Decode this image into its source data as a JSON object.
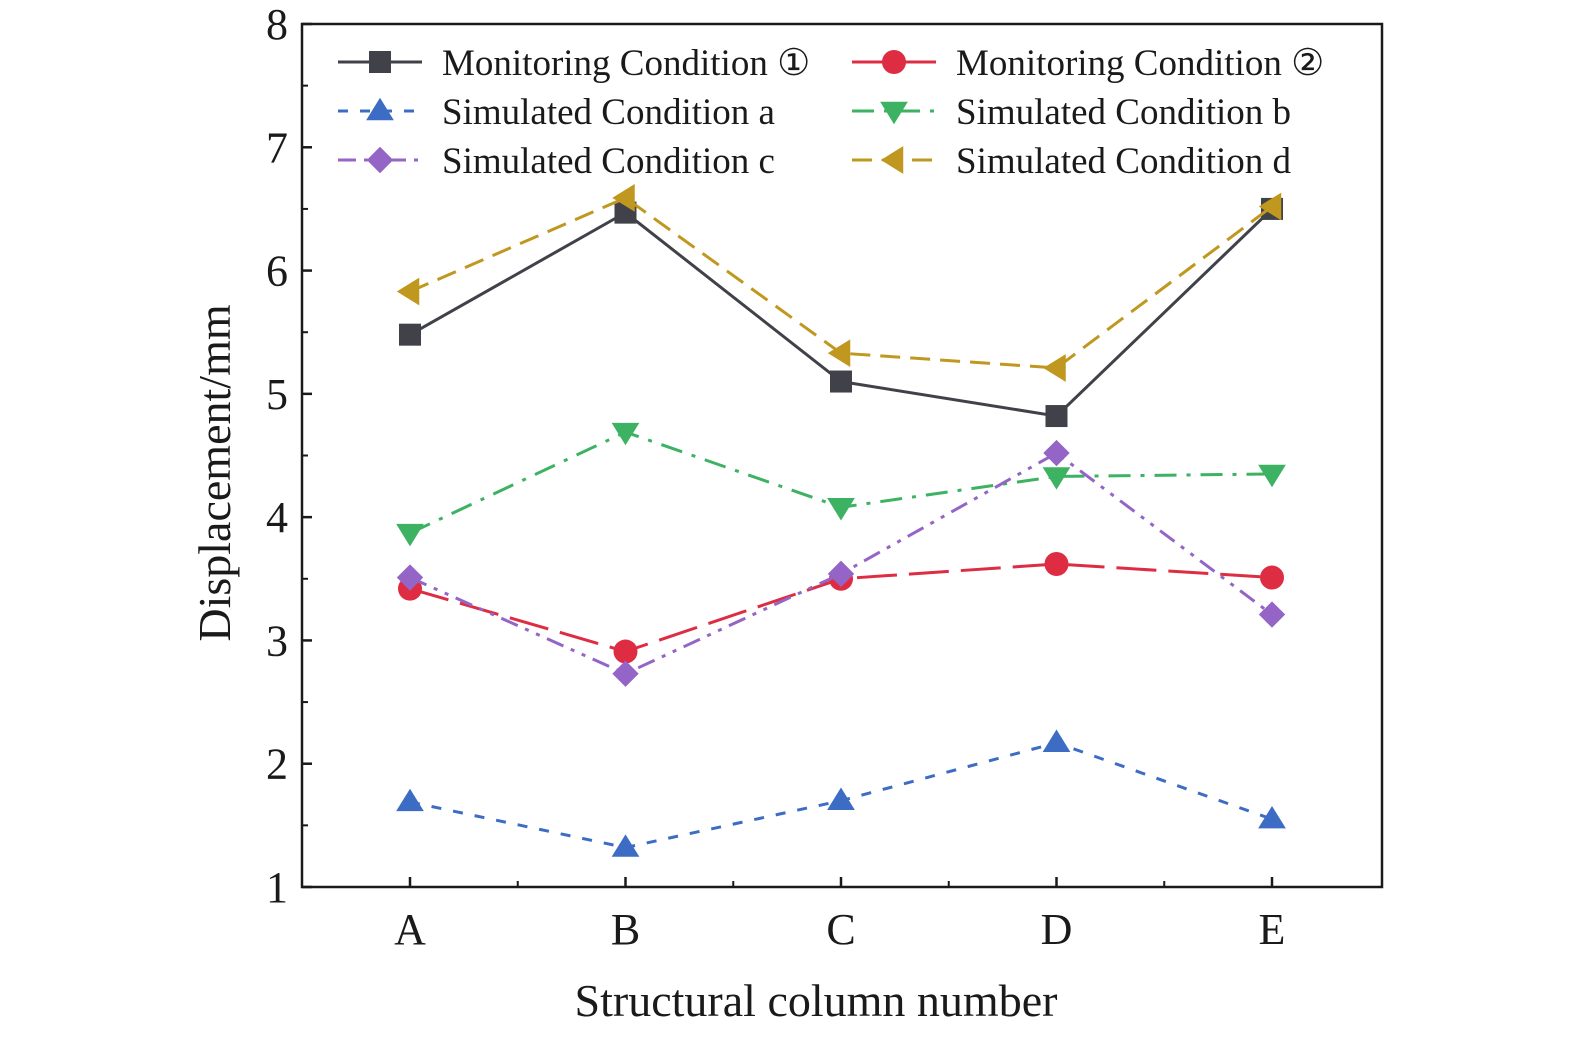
{
  "chart_data": {
    "type": "line",
    "xlabel": "Structural column number",
    "ylabel": "Displacement/mm",
    "categories": [
      "A",
      "B",
      "C",
      "D",
      "E"
    ],
    "ylim": [
      1,
      8
    ],
    "yticks": [
      "1",
      "2",
      "3",
      "4",
      "5",
      "6",
      "7",
      "8"
    ],
    "grid": false,
    "legend_position": "top",
    "series": [
      {
        "name": "Monitoring Condition ①",
        "values": [
          5.48,
          6.47,
          5.1,
          4.82,
          6.5
        ],
        "color": "#404149",
        "marker": "square",
        "dash": "solid"
      },
      {
        "name": "Monitoring Condition ②",
        "values": [
          3.42,
          2.91,
          3.5,
          3.62,
          3.51
        ],
        "color": "#de2c43",
        "marker": "circle",
        "dash": "long-dash"
      },
      {
        "name": "Simulated Condition a",
        "values": [
          1.69,
          1.32,
          1.7,
          2.17,
          1.55
        ],
        "color": "#3d6cc4",
        "marker": "triangle-up",
        "dash": "short-dash"
      },
      {
        "name": "Simulated Condition b",
        "values": [
          3.87,
          4.69,
          4.08,
          4.33,
          4.35
        ],
        "color": "#3db262",
        "marker": "triangle-down",
        "dash": "dash-dot"
      },
      {
        "name": "Simulated Condition c",
        "values": [
          3.51,
          2.73,
          3.54,
          4.52,
          3.21
        ],
        "color": "#9465c7",
        "marker": "diamond",
        "dash": "dash-dot-dot"
      },
      {
        "name": "Simulated Condition d",
        "values": [
          5.83,
          6.59,
          5.33,
          5.21,
          6.52
        ],
        "color": "#c0981f",
        "marker": "triangle-left",
        "dash": "dash"
      }
    ]
  }
}
